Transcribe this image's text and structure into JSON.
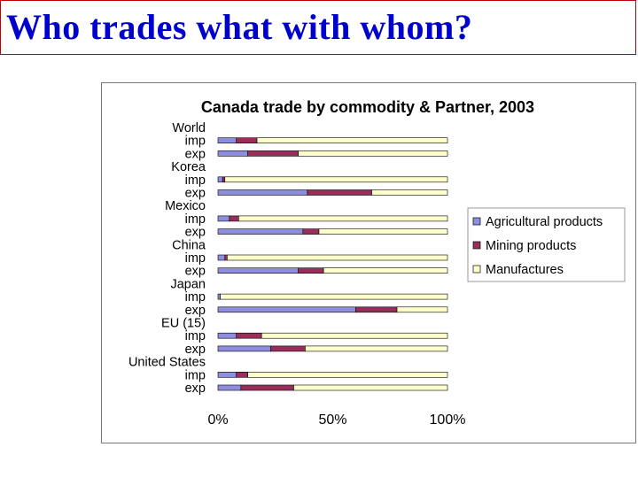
{
  "slide": {
    "title": "Who trades what with whom?"
  },
  "chart_data": {
    "type": "bar",
    "orientation": "horizontal",
    "stacked": "percent",
    "title": "Canada trade by commodity & Partner, 2003",
    "row_labels": [
      "World",
      "imp",
      "exp",
      "Korea",
      "imp",
      "exp",
      "Mexico",
      "imp",
      "exp",
      "China",
      "imp",
      "exp",
      "Japan",
      "imp",
      "exp",
      "EU (15)",
      "imp",
      "exp",
      "United States",
      "imp",
      "exp"
    ],
    "groups": [
      {
        "partner": "World",
        "rows": [
          {
            "label": "imp",
            "values": [
              8,
              9,
              83
            ]
          },
          {
            "label": "exp",
            "values": [
              13,
              22,
              65
            ]
          }
        ]
      },
      {
        "partner": "Korea",
        "rows": [
          {
            "label": "imp",
            "values": [
              2,
              1,
              97
            ]
          },
          {
            "label": "exp",
            "values": [
              39,
              28,
              33
            ]
          }
        ]
      },
      {
        "partner": "Mexico",
        "rows": [
          {
            "label": "imp",
            "values": [
              5,
              4,
              91
            ]
          },
          {
            "label": "exp",
            "values": [
              37,
              7,
              56
            ]
          }
        ]
      },
      {
        "partner": "China",
        "rows": [
          {
            "label": "imp",
            "values": [
              3,
              1,
              96
            ]
          },
          {
            "label": "exp",
            "values": [
              35,
              11,
              54
            ]
          }
        ]
      },
      {
        "partner": "Japan",
        "rows": [
          {
            "label": "imp",
            "values": [
              1,
              0,
              99
            ]
          },
          {
            "label": "exp",
            "values": [
              60,
              18,
              22
            ]
          }
        ]
      },
      {
        "partner": "EU (15)",
        "rows": [
          {
            "label": "imp",
            "values": [
              8,
              11,
              81
            ]
          },
          {
            "label": "exp",
            "values": [
              23,
              15,
              62
            ]
          }
        ]
      },
      {
        "partner": "United States",
        "rows": [
          {
            "label": "imp",
            "values": [
              8,
              5,
              87
            ]
          },
          {
            "label": "exp",
            "values": [
              10,
              23,
              67
            ]
          }
        ]
      }
    ],
    "series": [
      {
        "name": "Agricultural products",
        "color": "#8e8ee0"
      },
      {
        "name": "Mining products",
        "color": "#9a2e5a"
      },
      {
        "name": "Manufactures",
        "color": "#ffffcc"
      }
    ],
    "x_ticks": [
      "0%",
      "50%",
      "100%"
    ],
    "xlim": [
      0,
      100
    ],
    "grid": false,
    "legend_position": "right"
  }
}
